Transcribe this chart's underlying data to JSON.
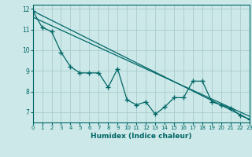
{
  "xlabel": "Humidex (Indice chaleur)",
  "ylabel": "",
  "xlim": [
    0,
    23
  ],
  "ylim": [
    6.5,
    12.2
  ],
  "yticks": [
    7,
    8,
    9,
    10,
    11,
    12
  ],
  "xticks": [
    0,
    1,
    2,
    3,
    4,
    5,
    6,
    7,
    8,
    9,
    10,
    11,
    12,
    13,
    14,
    15,
    16,
    17,
    18,
    19,
    20,
    21,
    22,
    23
  ],
  "bg_color": "#cce8e8",
  "grid_color": "#aacccc",
  "line_color": "#006666",
  "line1_x": [
    0,
    1,
    2,
    3,
    4,
    5,
    6,
    7,
    8,
    9,
    10,
    11,
    12,
    13,
    14,
    15,
    16,
    17,
    18,
    19,
    20,
    21,
    22,
    23
  ],
  "line1_y": [
    11.9,
    11.1,
    10.9,
    9.9,
    9.2,
    8.9,
    8.9,
    8.9,
    8.2,
    9.1,
    7.6,
    7.35,
    7.5,
    6.9,
    7.25,
    7.7,
    7.7,
    8.5,
    8.5,
    7.5,
    7.35,
    7.2,
    6.85,
    6.65
  ],
  "line2_x": [
    0,
    23
  ],
  "line2_y": [
    11.9,
    6.65
  ],
  "line3_x": [
    0,
    23
  ],
  "line3_y": [
    11.6,
    6.8
  ],
  "marker": "+",
  "markersize": 4,
  "linewidth": 0.9
}
